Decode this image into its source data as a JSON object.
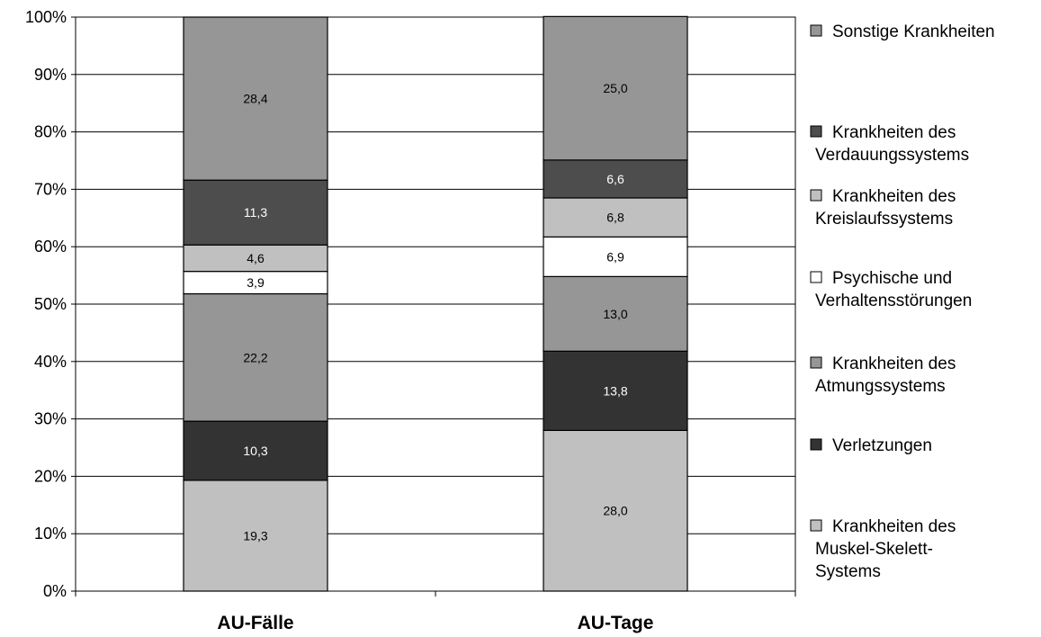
{
  "chart_data": {
    "type": "bar",
    "stacked": true,
    "categories": [
      "AU-Fälle",
      "AU-Tage"
    ],
    "ylim": [
      0,
      100
    ],
    "y_ticks": [
      "0%",
      "10%",
      "20%",
      "30%",
      "40%",
      "50%",
      "60%",
      "70%",
      "80%",
      "90%",
      "100%"
    ],
    "grid": true,
    "legend_position": "right",
    "series": [
      {
        "name": "Krankheiten des Muskel-Skelett-Systems",
        "legend_lines": [
          "Krankheiten des",
          "Muskel-Skelett-",
          "Systems"
        ],
        "color": "#c0c0c0",
        "label_color": "#000000",
        "values": [
          19.3,
          28.0
        ],
        "labels": [
          "19,3",
          "28,0"
        ]
      },
      {
        "name": "Verletzungen",
        "legend_lines": [
          "Verletzungen"
        ],
        "color": "#333333",
        "label_color": "#ffffff",
        "values": [
          10.3,
          13.8
        ],
        "labels": [
          "10,3",
          "13,8"
        ]
      },
      {
        "name": "Krankheiten des Atmungssystems",
        "legend_lines": [
          "Krankheiten des",
          "Atmungssystems"
        ],
        "color": "#969696",
        "label_color": "#000000",
        "values": [
          22.2,
          13.0
        ],
        "labels": [
          "22,2",
          "13,0"
        ]
      },
      {
        "name": "Psychische und Verhaltensstörungen",
        "legend_lines": [
          "Psychische und",
          "Verhaltensstörungen"
        ],
        "color": "#ffffff",
        "label_color": "#000000",
        "values": [
          3.9,
          6.9
        ],
        "labels": [
          "3,9",
          "6,9"
        ]
      },
      {
        "name": "Krankheiten des Kreislaufssystems",
        "legend_lines": [
          "Krankheiten des",
          "Kreislaufssystems"
        ],
        "color": "#c0c0c0",
        "label_color": "#000000",
        "values": [
          4.6,
          6.8
        ],
        "labels": [
          "4,6",
          "6,8"
        ]
      },
      {
        "name": "Krankheiten des Verdauungssystems",
        "legend_lines": [
          "Krankheiten des",
          "Verdauungssystems"
        ],
        "color": "#4d4d4d",
        "label_color": "#ffffff",
        "values": [
          11.3,
          6.6
        ],
        "labels": [
          "11,3",
          "6,6"
        ]
      },
      {
        "name": "Sonstige Krankheiten",
        "legend_lines": [
          "Sonstige Krankheiten"
        ],
        "color": "#969696",
        "label_color": "#000000",
        "values": [
          28.4,
          25.0
        ],
        "labels": [
          "28,4",
          "25,0"
        ]
      }
    ]
  }
}
